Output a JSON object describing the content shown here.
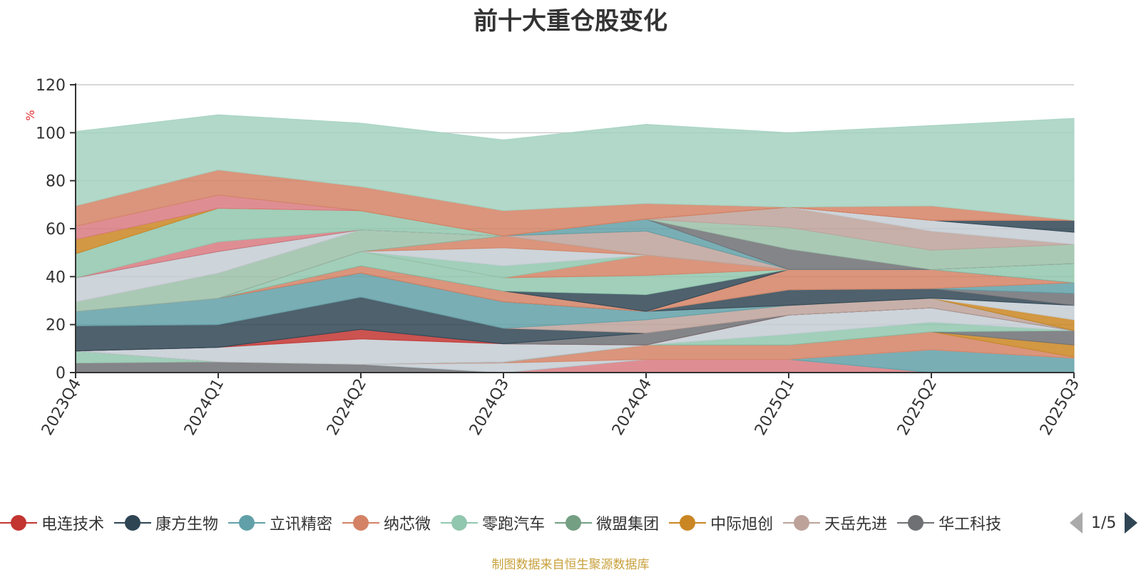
{
  "chart_data": {
    "type": "area",
    "stacked": true,
    "title": "前十大重仓股变化",
    "ylabel": "%",
    "ylim": [
      0,
      120
    ],
    "yticks": [
      0,
      20,
      40,
      60,
      80,
      100,
      120
    ],
    "grid": true,
    "legend_position": "bottom",
    "categories": [
      "2023Q4",
      "2024Q1",
      "2024Q2",
      "2024Q3",
      "2024Q4",
      "2025Q1",
      "2025Q2",
      "2025Q3"
    ],
    "series": [
      {
        "name": "",
        "color": "#6e7074",
        "values": [
          4,
          4.5,
          3.5,
          0,
          0,
          0,
          0,
          0
        ]
      },
      {
        "name": "",
        "color": "#d87a80",
        "values": [
          0,
          0,
          0,
          0,
          5.5,
          5.5,
          0,
          0
        ]
      },
      {
        "name": "",
        "color": "#91c7ae",
        "values": [
          5,
          0,
          0,
          0,
          0,
          0,
          0,
          0
        ]
      },
      {
        "name": "",
        "color": "#61a0a8",
        "values": [
          0,
          0,
          0,
          0,
          0,
          0,
          9.5,
          6
        ]
      },
      {
        "name": "",
        "color": "#c4ccd3",
        "values": [
          0,
          0,
          0,
          4,
          0,
          0,
          0,
          0
        ]
      },
      {
        "name": "",
        "color": "#d48265",
        "values": [
          0,
          0,
          0,
          0,
          6,
          6,
          7.5,
          0.5
        ]
      },
      {
        "name": "",
        "color": "#bda29a",
        "values": [
          0,
          0,
          0,
          0.5,
          0,
          0,
          0,
          0
        ]
      },
      {
        "name": "",
        "color": "#ca8622",
        "values": [
          0,
          0,
          0,
          0,
          0,
          0,
          0,
          5
        ]
      },
      {
        "name": "",
        "color": "#6e7074",
        "values": [
          0,
          0,
          0,
          0,
          0,
          0,
          0,
          6
        ]
      },
      {
        "name": "",
        "color": "#91c7ae",
        "values": [
          0,
          0,
          0,
          0,
          0,
          4.5,
          4,
          0
        ]
      },
      {
        "name": "",
        "color": "#c4ccd3",
        "values": [
          0,
          6,
          10.5,
          7.5,
          0,
          8,
          6,
          0
        ]
      },
      {
        "name": "",
        "color": "#c23531",
        "values": [
          0,
          0,
          4,
          0,
          0,
          0,
          0,
          0
        ]
      },
      {
        "name": "",
        "color": "#6e7074",
        "values": [
          0,
          0,
          0,
          0,
          5,
          0,
          0,
          0
        ]
      },
      {
        "name": "",
        "color": "#2f4554",
        "values": [
          10.5,
          9.5,
          13.5,
          6.5,
          0,
          0,
          0,
          0
        ]
      },
      {
        "name": "",
        "color": "#bda29a",
        "values": [
          0,
          0,
          0,
          0,
          5.5,
          4,
          4,
          0
        ]
      },
      {
        "name": "",
        "color": "#61a0a8",
        "values": [
          6,
          11,
          10,
          11,
          3.5,
          0,
          0,
          0
        ]
      },
      {
        "name": "",
        "color": "#ca8622",
        "values": [
          0,
          0,
          0,
          0,
          0,
          0,
          0,
          4.5
        ]
      },
      {
        "name": "",
        "color": "#c4ccd3",
        "values": [
          0,
          0,
          0,
          0,
          0,
          0,
          0,
          6
        ]
      },
      {
        "name": "",
        "color": "#2f4554",
        "values": [
          0,
          0,
          0,
          0,
          0,
          6.5,
          4,
          0
        ]
      },
      {
        "name": "",
        "color": "#6e7074",
        "values": [
          0,
          0,
          0,
          0,
          0,
          0,
          0,
          5
        ]
      },
      {
        "name": "",
        "color": "#61a0a8",
        "values": [
          0,
          0,
          0,
          0,
          0,
          0,
          0,
          4.5
        ]
      },
      {
        "name": "",
        "color": "#d48265",
        "values": [
          0,
          0,
          3,
          4.5,
          0,
          8.5,
          8,
          0
        ]
      },
      {
        "name": "",
        "color": "#2f4554",
        "values": [
          0,
          0,
          0,
          0,
          7,
          0,
          0,
          0
        ]
      },
      {
        "name": "",
        "color": "#91c7ae",
        "values": [
          0,
          0,
          6,
          5.5,
          8,
          0,
          0,
          8
        ]
      },
      {
        "name": "",
        "color": "#d48265",
        "values": [
          0,
          0,
          0,
          0,
          8.5,
          0,
          0,
          0
        ]
      },
      {
        "name": "",
        "color": "#91c7ae",
        "values": [
          0,
          0,
          0,
          5,
          0,
          0,
          0,
          0
        ]
      },
      {
        "name": "",
        "color": "#c4ccd3",
        "values": [
          0,
          0,
          0,
          7.5,
          0,
          0,
          0,
          0
        ]
      },
      {
        "name": "",
        "color": "#d48265",
        "values": [
          0,
          0,
          0,
          5,
          0,
          0,
          0,
          0
        ]
      },
      {
        "name": "",
        "color": "#bda29a",
        "values": [
          0,
          0,
          0,
          0,
          10,
          0,
          0,
          0
        ]
      },
      {
        "name": "",
        "color": "#d48265",
        "values": [
          0,
          0,
          0,
          0,
          0,
          0,
          0,
          0
        ]
      },
      {
        "name": "",
        "color": "#61a0a8",
        "values": [
          0,
          0,
          0,
          0,
          5,
          0,
          0,
          0
        ]
      },
      {
        "name": "",
        "color": "#6e7074",
        "values": [
          0,
          0,
          0,
          0,
          0,
          8.5,
          0,
          0
        ]
      },
      {
        "name": "",
        "color": "#9bbfa8",
        "values": [
          4,
          10.5,
          9,
          0,
          0,
          9,
          8,
          8
        ]
      },
      {
        "name": "",
        "color": "#bda29a",
        "values": [
          0,
          0,
          0,
          0,
          0,
          8.5,
          8,
          0
        ]
      },
      {
        "name": "",
        "color": "#c4ccd3",
        "values": [
          10,
          9,
          0,
          0,
          0,
          0,
          4.5,
          5
        ]
      },
      {
        "name": "",
        "color": "#2f4554",
        "values": [
          0,
          0,
          0,
          0,
          0,
          0,
          0,
          5
        ]
      },
      {
        "name": "",
        "color": "#d87a80",
        "values": [
          0,
          4,
          0,
          0,
          0,
          0,
          0,
          0
        ]
      },
      {
        "name": "",
        "color": "#91c7ae",
        "values": [
          10,
          14,
          8,
          0,
          0,
          0,
          0,
          0
        ]
      },
      {
        "name": "",
        "color": "#ca8622",
        "values": [
          6,
          0,
          0,
          0,
          0,
          0,
          0,
          0
        ]
      },
      {
        "name": "",
        "color": "#d87a80",
        "values": [
          5.5,
          5.5,
          0,
          0,
          0,
          0,
          0,
          0
        ]
      },
      {
        "name": "",
        "color": "#d48265",
        "values": [
          8.5,
          10.5,
          10,
          10.5,
          6.5,
          0,
          6,
          0
        ]
      },
      {
        "name": "",
        "color": "#a3d1c0",
        "values": [
          31,
          23,
          26.5,
          29.5,
          33,
          31,
          33.5,
          42.5
        ]
      }
    ],
    "legend_items": [
      {
        "label": "电连技术",
        "color": "#c23531"
      },
      {
        "label": "康方生物",
        "color": "#2f4554"
      },
      {
        "label": "立讯精密",
        "color": "#61a0a8"
      },
      {
        "label": "纳芯微",
        "color": "#d48265"
      },
      {
        "label": "零跑汽车",
        "color": "#91c7ae"
      },
      {
        "label": "微盟集团",
        "color": "#749f83"
      },
      {
        "label": "中际旭创",
        "color": "#ca8622"
      },
      {
        "label": "天岳先进",
        "color": "#bda29a"
      },
      {
        "label": "华工科技",
        "color": "#6e7074"
      }
    ],
    "pager": "1/5",
    "source": "制图数据来自恒生聚源数据库"
  }
}
